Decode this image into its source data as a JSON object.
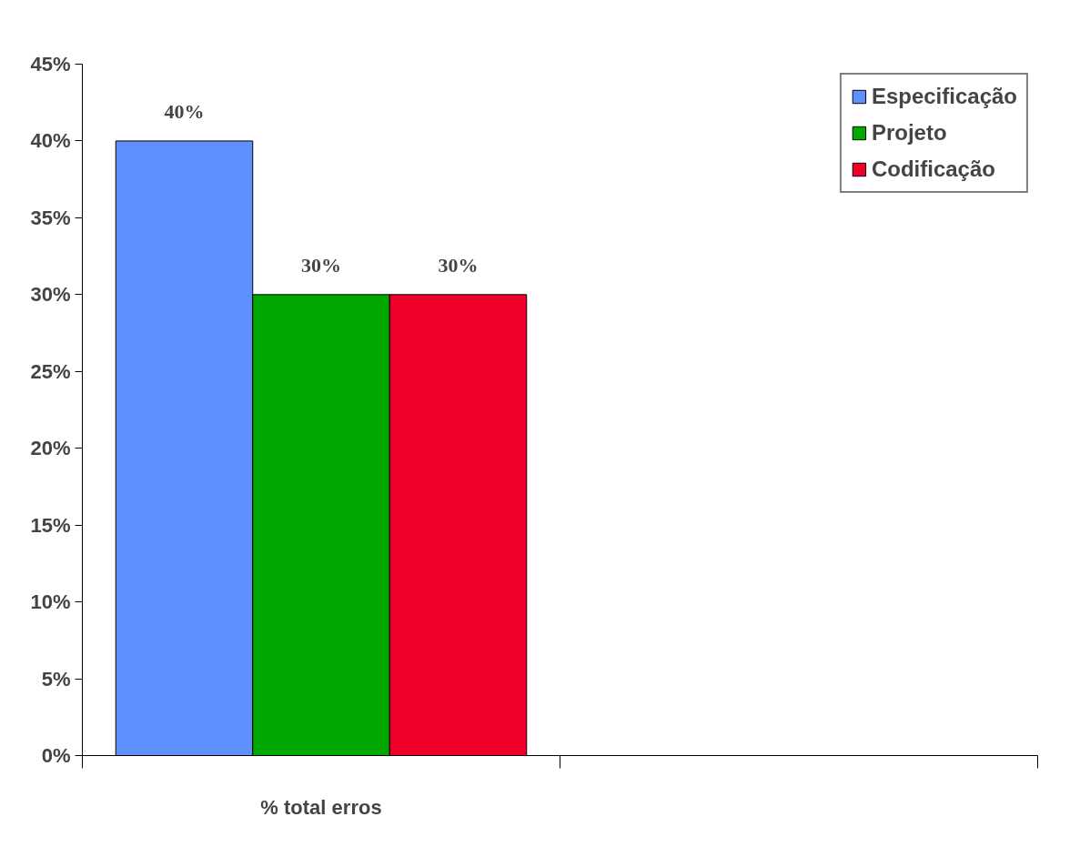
{
  "chart_data": {
    "type": "bar",
    "categories": [
      "% total erros",
      null
    ],
    "series": [
      {
        "name": "Especificação",
        "color": "#6090ff",
        "values": [
          40,
          null
        ],
        "value_labels": [
          "40%",
          null
        ]
      },
      {
        "name": "Projeto",
        "color": "#00a800",
        "values": [
          30,
          null
        ],
        "value_labels": [
          "30%",
          null
        ]
      },
      {
        "name": "Codificação",
        "color": "#f00028",
        "values": [
          30,
          null
        ],
        "value_labels": [
          "30%",
          null
        ]
      }
    ],
    "ylim": [
      0,
      45
    ],
    "yticks": [
      {
        "value": 0,
        "label": "0%"
      },
      {
        "value": 5,
        "label": "5%"
      },
      {
        "value": 10,
        "label": "10%"
      },
      {
        "value": 15,
        "label": "15%"
      },
      {
        "value": 20,
        "label": "20%"
      },
      {
        "value": 25,
        "label": "25%"
      },
      {
        "value": 30,
        "label": "30%"
      },
      {
        "value": 35,
        "label": "35%"
      },
      {
        "value": 40,
        "label": "40%"
      },
      {
        "value": 45,
        "label": "45%"
      }
    ],
    "grid": false,
    "legend": "top right"
  }
}
